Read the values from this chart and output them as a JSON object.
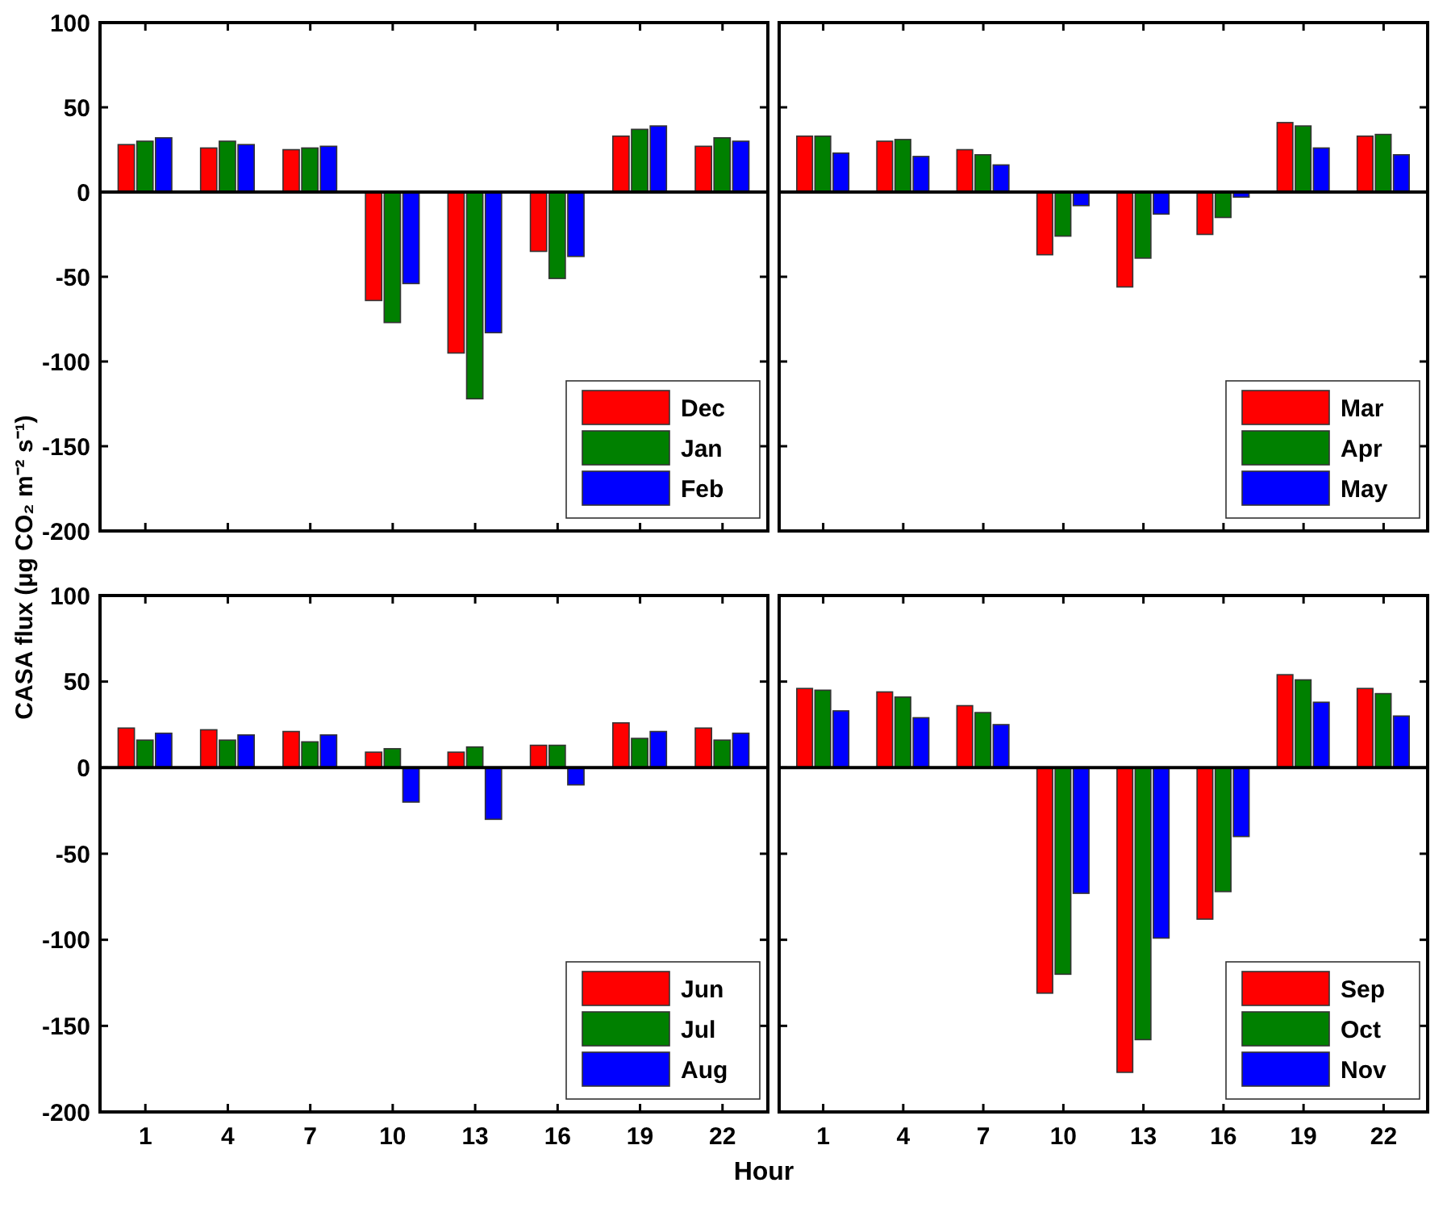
{
  "chart_data": [
    {
      "type": "bar",
      "ylabel": "CASA flux (μg CO₂ m⁻² s⁻¹)",
      "categories": [
        "1",
        "4",
        "7",
        "10",
        "13",
        "16",
        "19",
        "22"
      ],
      "ylim": [
        -200,
        100
      ],
      "yticks": [
        -200,
        -150,
        -100,
        -50,
        0,
        50,
        100
      ],
      "legend": "bottom right",
      "tick_labels": "y",
      "series": [
        {
          "name": "Dec",
          "color": "#ff0000",
          "values": [
            28,
            26,
            25,
            -64,
            -95,
            -35,
            33,
            27
          ]
        },
        {
          "name": "Jan",
          "color": "#008000",
          "values": [
            30,
            30,
            26,
            -77,
            -122,
            -51,
            37,
            32
          ]
        },
        {
          "name": "Feb",
          "color": "#0000ff",
          "values": [
            32,
            28,
            27,
            -54,
            -83,
            -38,
            39,
            30
          ]
        }
      ]
    },
    {
      "type": "bar",
      "categories": [
        "1",
        "4",
        "7",
        "10",
        "13",
        "16",
        "19",
        "22"
      ],
      "ylim": [
        -200,
        100
      ],
      "yticks": [
        -200,
        -150,
        -100,
        -50,
        0,
        50,
        100
      ],
      "legend": "bottom right",
      "tick_labels": false,
      "series": [
        {
          "name": "Mar",
          "color": "#ff0000",
          "values": [
            33,
            30,
            25,
            -37,
            -56,
            -25,
            41,
            33
          ]
        },
        {
          "name": "Apr",
          "color": "#008000",
          "values": [
            33,
            31,
            22,
            -26,
            -39,
            -15,
            39,
            34
          ]
        },
        {
          "name": "May",
          "color": "#0000ff",
          "values": [
            23,
            21,
            16,
            -8,
            -13,
            -3,
            26,
            22
          ]
        }
      ]
    },
    {
      "type": "bar",
      "xlabel": "Hour",
      "categories": [
        "1",
        "4",
        "7",
        "10",
        "13",
        "16",
        "19",
        "22"
      ],
      "ylim": [
        -200,
        100
      ],
      "yticks": [
        -200,
        -150,
        -100,
        -50,
        0,
        50,
        100
      ],
      "legend": "bottom right",
      "series": [
        {
          "name": "Jun",
          "color": "#ff0000",
          "values": [
            23,
            22,
            21,
            9,
            9,
            13,
            26,
            23
          ]
        },
        {
          "name": "Jul",
          "color": "#008000",
          "values": [
            16,
            16,
            15,
            11,
            12,
            13,
            17,
            16
          ]
        },
        {
          "name": "Aug",
          "color": "#0000ff",
          "values": [
            20,
            19,
            19,
            -20,
            -30,
            -10,
            21,
            20
          ]
        }
      ]
    },
    {
      "type": "bar",
      "categories": [
        "1",
        "4",
        "7",
        "10",
        "13",
        "16",
        "19",
        "22"
      ],
      "ylim": [
        -200,
        100
      ],
      "yticks": [
        -200,
        -150,
        -100,
        -50,
        0,
        50,
        100
      ],
      "legend": "bottom right",
      "tick_labels": "x",
      "series": [
        {
          "name": "Sep",
          "color": "#ff0000",
          "values": [
            46,
            44,
            36,
            -131,
            -177,
            -88,
            54,
            46
          ]
        },
        {
          "name": "Oct",
          "color": "#008000",
          "values": [
            45,
            41,
            32,
            -120,
            -158,
            -72,
            51,
            43
          ]
        },
        {
          "name": "Nov",
          "color": "#0000ff",
          "values": [
            33,
            29,
            25,
            -73,
            -99,
            -40,
            38,
            30
          ]
        }
      ]
    }
  ]
}
